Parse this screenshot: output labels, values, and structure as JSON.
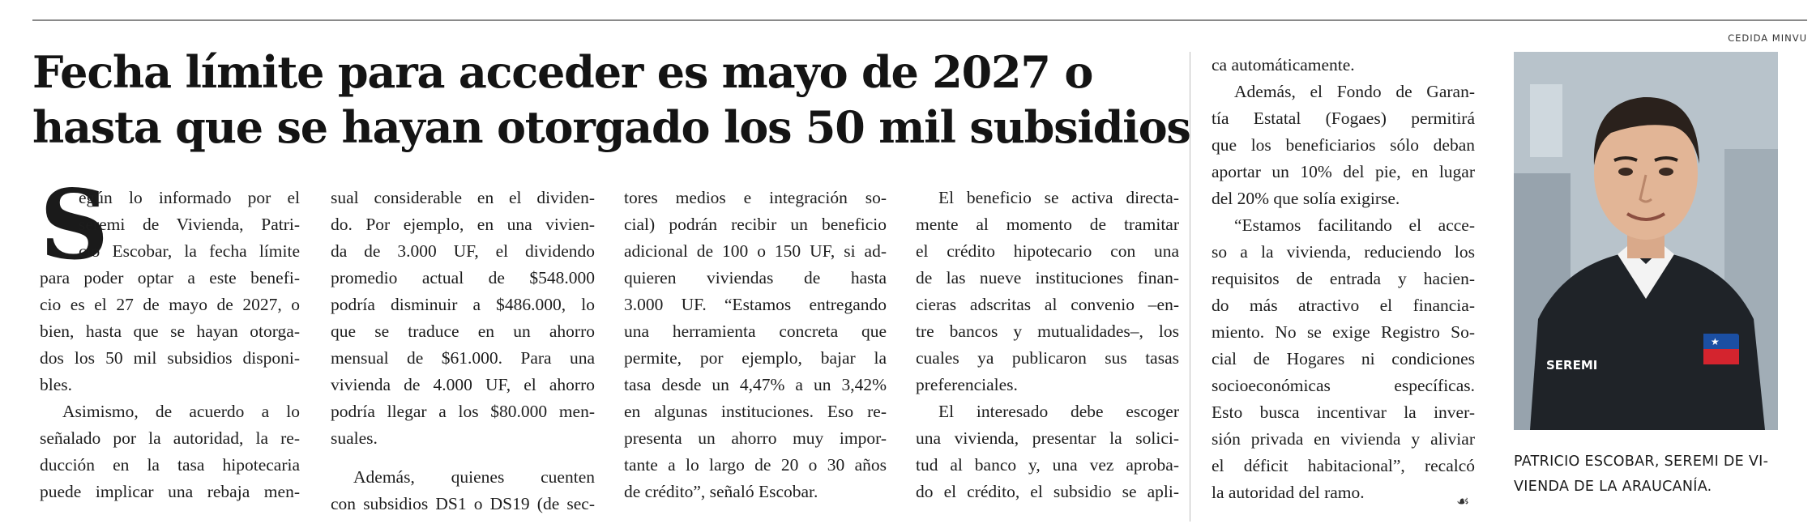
{
  "photo_credit": "CEDIDA MINVU",
  "headline": {
    "line1": "Fecha límite para acceder es mayo de 2027 o",
    "line2": "hasta que se hayan otorgado los 50 mil subsidios"
  },
  "dropcap": "S",
  "columns": [
    [
      "egún lo informado por el",
      "seremi de Vivienda, Patri-",
      "cio Escobar, la fecha límite",
      "para poder optar a este benefi-",
      "cio es el 27 de mayo de 2027, o",
      "bien, hasta que se hayan otorga-",
      "dos los 50 mil subsidios disponi-",
      "bles.",
      "Asimismo, de acuerdo a lo",
      "señalado por la autoridad, la re-",
      "ducción en la tasa hipotecaria",
      "puede implicar una rebaja men-"
    ],
    [
      "sual considerable en el dividen-",
      "do. Por ejemplo, en una vivien-",
      "da de 3.000 UF, el dividendo",
      "promedio actual de $548.000",
      "podría disminuir a $486.000, lo",
      "que se traduce en un ahorro",
      "mensual de $61.000. Para una",
      "vivienda de 4.000 UF, el ahorro",
      "podría llegar a los $80.000 men-",
      "suales.",
      "Además, quienes cuenten",
      "con subsidios DS1 o DS19 (de sec-"
    ],
    [
      "tores medios e integración so-",
      "cial) podrán recibir un beneficio",
      "adicional de 100 o 150 UF, si ad-",
      "quieren viviendas de hasta",
      "3.000 UF. “Estamos entregando",
      "una herramienta concreta que",
      "permite, por ejemplo, bajar la",
      "tasa desde un 4,47% a un 3,42%",
      "en algunas instituciones. Eso re-",
      "presenta un ahorro muy impor-",
      "tante a lo largo de 20 o 30 años",
      "de crédito”, señaló Escobar."
    ],
    [
      "El beneficio se activa directa-",
      "mente al momento de tramitar",
      "el crédito hipotecario con una",
      "de las nueve instituciones finan-",
      "cieras adscritas al convenio –en-",
      "tre bancos y mutualidades–, los",
      "cuales ya publicaron sus tasas",
      "preferenciales.",
      "El interesado debe escoger",
      "una vivienda, presentar la solici-",
      "tud al banco y, una vez aproba-",
      "do el crédito, el subsidio se apli-"
    ],
    [
      "ca automáticamente.",
      "Además, el Fondo de Garan-",
      "tía Estatal (Fogaes) permitirá",
      "que los beneficiarios sólo deban",
      "aportar un 10% del pie, en lugar",
      "del 20% que solía exigirse.",
      "“Estamos facilitando el acce-",
      "so a la vivienda, reduciendo los",
      "requisitos de entrada y hacien-",
      "do más atractivo el financia-",
      "miento. No se exige Registro So-",
      "cial de Hogares ni condiciones",
      "socioeconómicas específicas.",
      "Esto busca incentivar la inver-",
      "sión privada en vivienda y aliviar",
      "el déficit habitacional”, recalcó",
      "la autoridad del ramo."
    ]
  ],
  "photo_badge": "SEREMI",
  "caption": {
    "line1": "PATRICIO ESCOBAR, SEREMI DE VI-",
    "line2": "VIENDA DE LA ARAUCANÍA."
  },
  "end_mark": "☙"
}
